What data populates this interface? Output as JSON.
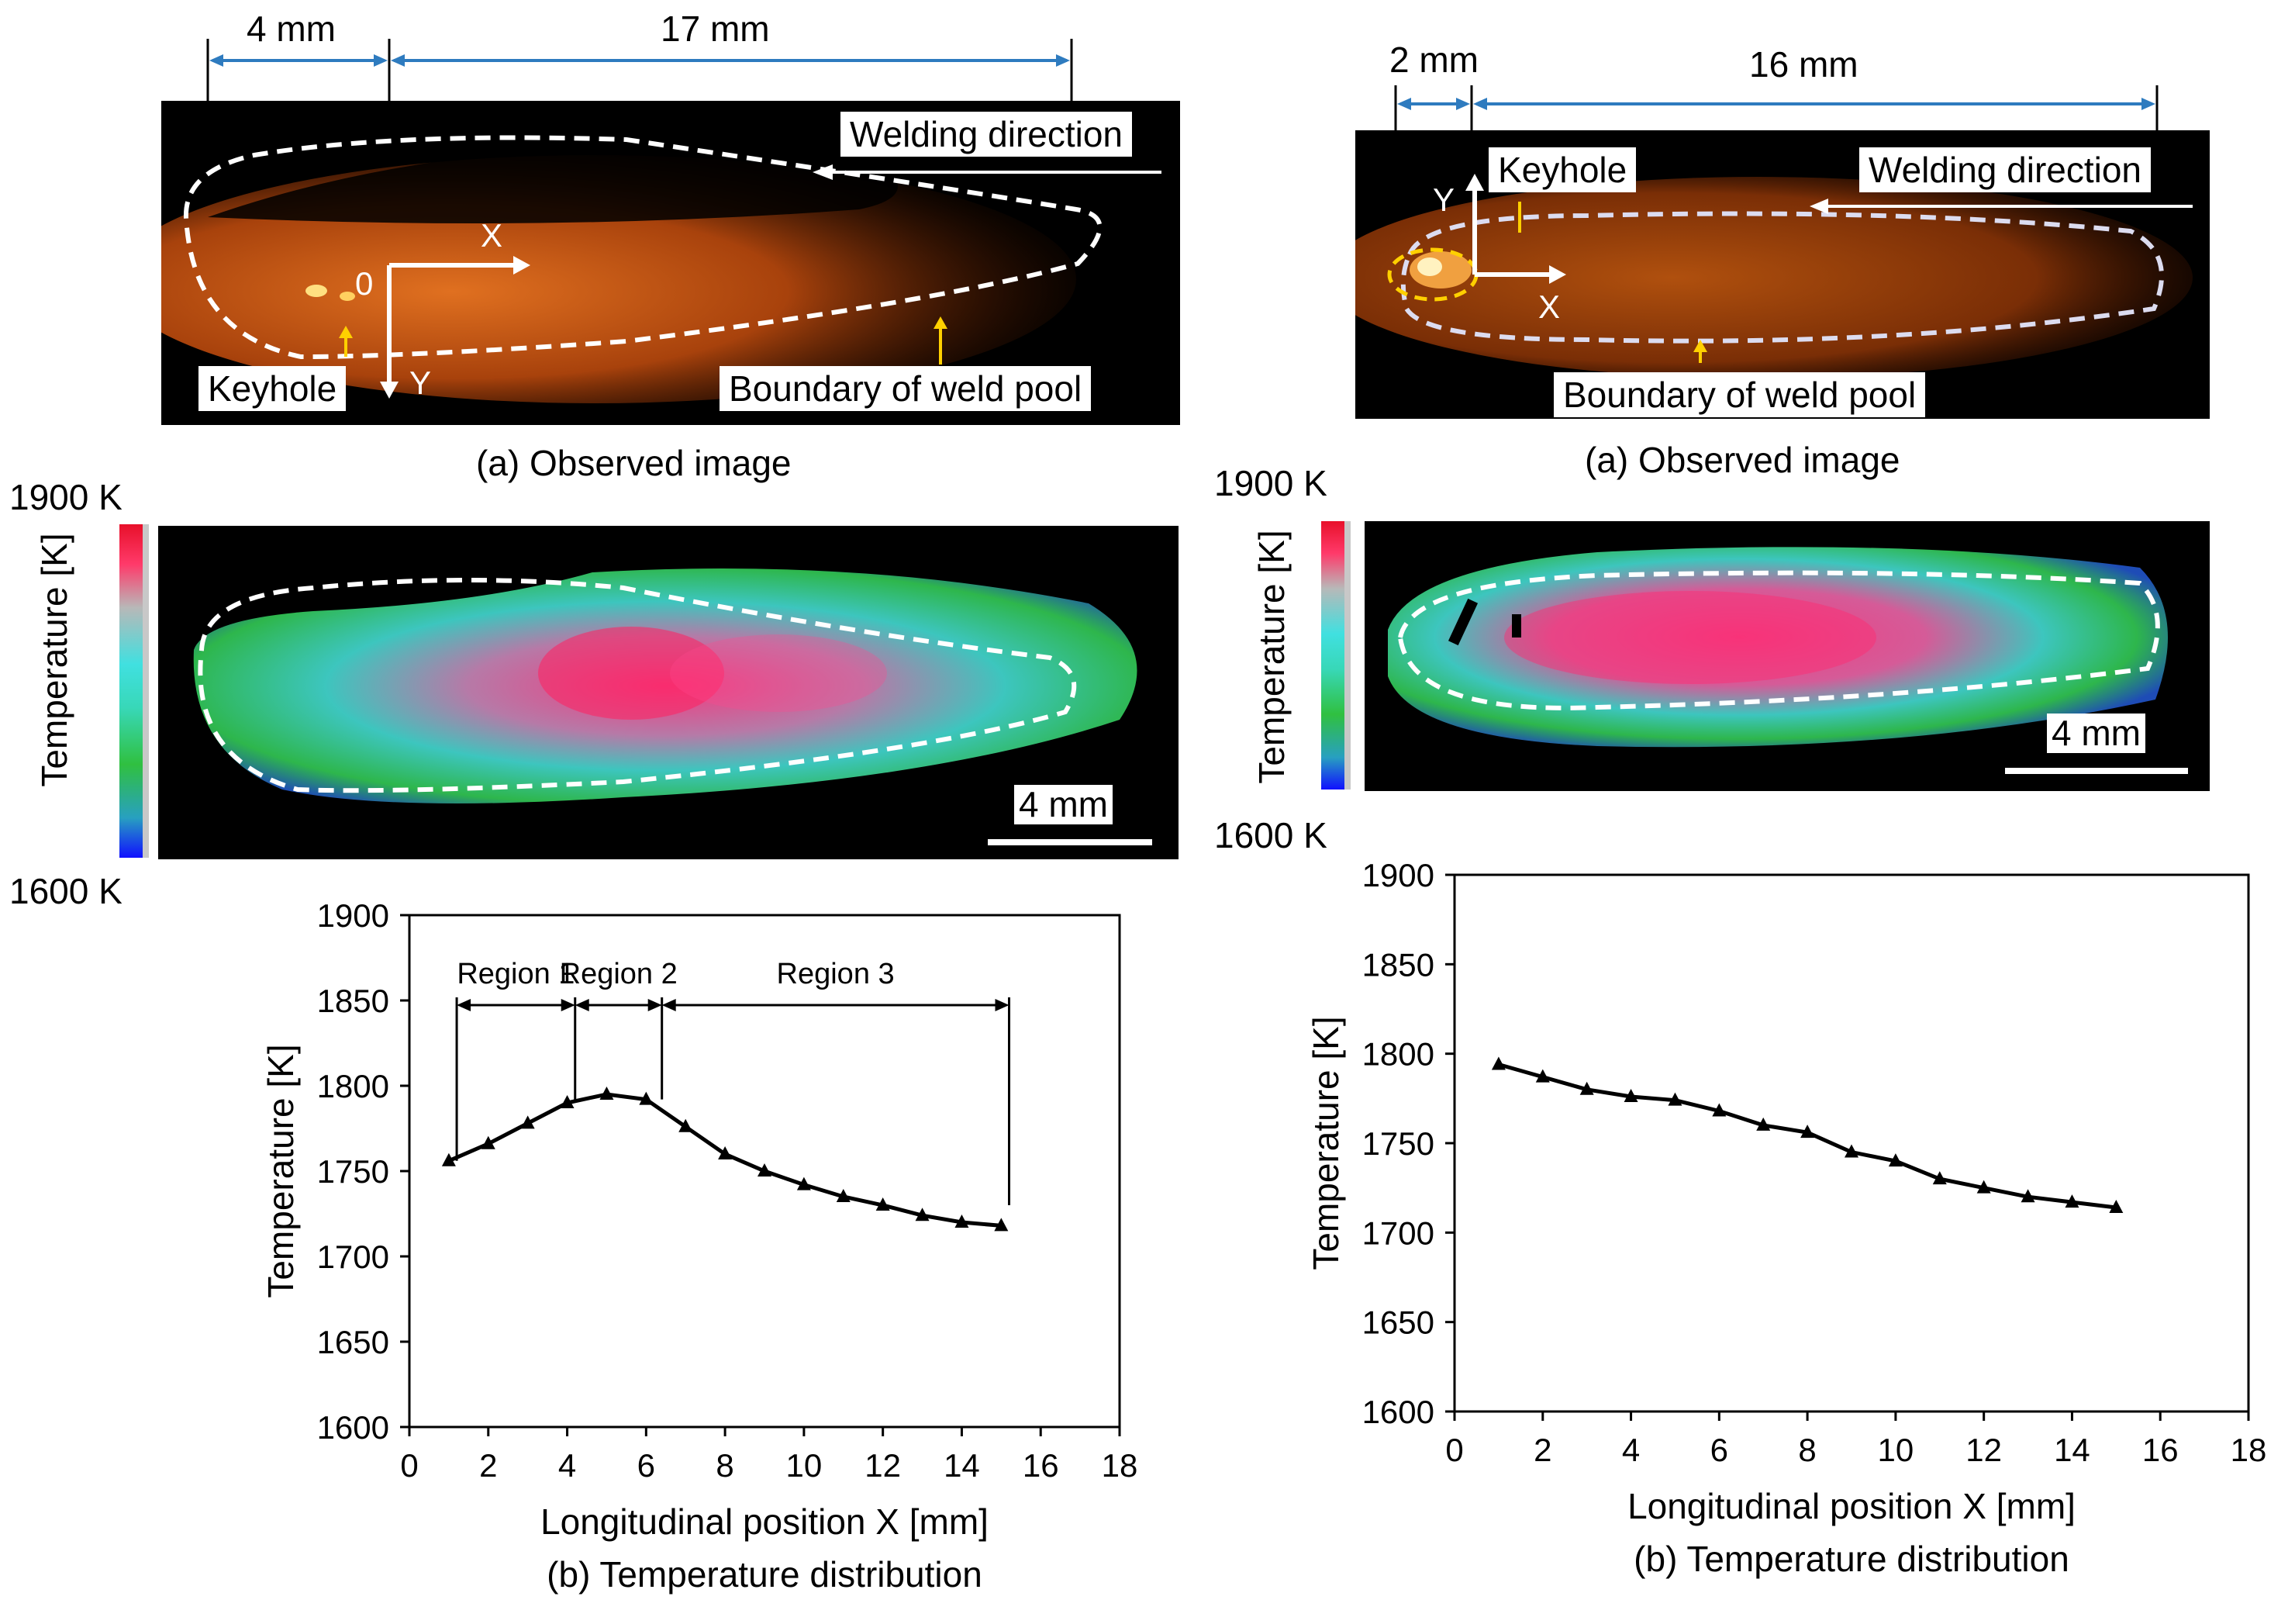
{
  "left": {
    "dim_left": "4 mm",
    "dim_right": "17 mm",
    "welding_direction": "Welding direction",
    "keyhole": "Keyhole",
    "boundary": "Boundary of weld pool",
    "axis_x": "X",
    "axis_y": "Y",
    "origin": "0",
    "caption_a": "(a) Observed image",
    "caption_b": "(b) Temperature distribution",
    "cb_top": "1900 K",
    "cb_bottom": "1600 K",
    "cb_label": "Temperature  [K]",
    "scale": "4 mm",
    "regions": [
      "Region 1",
      "Region 2",
      "Region 3"
    ]
  },
  "right": {
    "dim_left": "2 mm",
    "dim_right": "16 mm",
    "welding_direction": "Welding direction",
    "keyhole": "Keyhole",
    "boundary": "Boundary of weld pool",
    "axis_x": "X",
    "axis_y": "Y",
    "caption_a": "(a) Observed image",
    "caption_b": "(b) Temperature distribution",
    "cb_top": "1900 K",
    "cb_bottom": "1600 K",
    "cb_label": "Temperature  [K]",
    "scale": "4 mm"
  },
  "colors": {
    "dimension_arrow": "#2e7bbf",
    "line": "#000000",
    "pool_glow": "#c85a10",
    "dashed_boundary": "#ffffff",
    "keyhole_ring": "#ffd000"
  },
  "chart_data": [
    {
      "type": "line",
      "title": "",
      "xlabel": "Longitudinal position X [mm]",
      "ylabel": "Temperature  [K]",
      "xlim": [
        0,
        18
      ],
      "ylim": [
        1600,
        1900
      ],
      "xticks": [
        0,
        2,
        4,
        6,
        8,
        10,
        12,
        14,
        16,
        18
      ],
      "yticks": [
        1600,
        1650,
        1700,
        1750,
        1800,
        1850,
        1900
      ],
      "grid": false,
      "x": [
        1,
        2,
        3,
        4,
        5,
        6,
        7,
        8,
        9,
        10,
        11,
        12,
        13,
        14,
        15
      ],
      "y": [
        1756,
        1766,
        1778,
        1790,
        1795,
        1792,
        1776,
        1760,
        1750,
        1742,
        1735,
        1730,
        1724,
        1720,
        1718
      ],
      "regions": [
        {
          "name": "Region 1",
          "from": 1.2,
          "to": 4.2
        },
        {
          "name": "Region 2",
          "from": 4.2,
          "to": 6.4
        },
        {
          "name": "Region 3",
          "from": 6.4,
          "to": 15.2
        }
      ]
    },
    {
      "type": "line",
      "title": "",
      "xlabel": "Longitudinal position X [mm]",
      "ylabel": "Temperature  [K]",
      "xlim": [
        0,
        18
      ],
      "ylim": [
        1600,
        1900
      ],
      "xticks": [
        0,
        2,
        4,
        6,
        8,
        10,
        12,
        14,
        16,
        18
      ],
      "yticks": [
        1600,
        1650,
        1700,
        1750,
        1800,
        1850,
        1900
      ],
      "grid": false,
      "x": [
        1,
        2,
        3,
        4,
        5,
        6,
        7,
        8,
        9,
        10,
        11,
        12,
        13,
        14,
        15
      ],
      "y": [
        1794,
        1787,
        1780,
        1776,
        1774,
        1768,
        1760,
        1756,
        1745,
        1740,
        1730,
        1725,
        1720,
        1717,
        1714
      ]
    }
  ]
}
